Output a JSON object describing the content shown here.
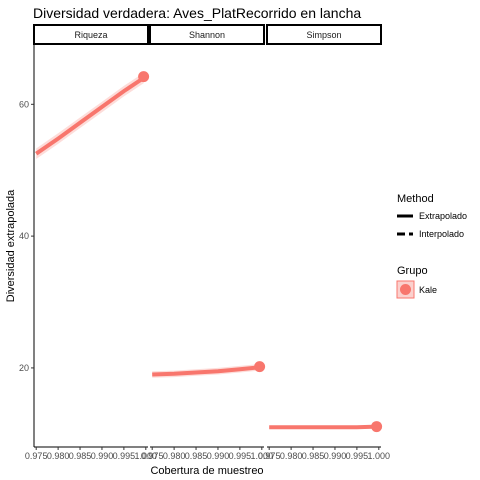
{
  "chart_data": {
    "type": "line",
    "title": "Diversidad verdadera: Aves_PlatRecorrido en lancha",
    "xlabel": "Cobertura de muestreo",
    "ylabel": "Diversidad extrapolada",
    "x_ticks": [
      "0.975",
      "0.980",
      "0.985",
      "0.990",
      "0.995",
      "1.000"
    ],
    "x_range": [
      0.9745,
      1.0005
    ],
    "y_ticks": [
      20,
      40,
      60
    ],
    "y_range": [
      8,
      69
    ],
    "panels": [
      {
        "label": "Riqueza",
        "series": [
          {
            "name": "Kale",
            "method": "Interpolado",
            "x": [
              0.975,
              0.98,
              0.985,
              0.99,
              0.995,
              0.9995
            ],
            "y": [
              52.5,
              54.8,
              57.2,
              59.6,
              62.0,
              64.0
            ],
            "lower": [
              51.7,
              54.0,
              56.4,
              58.8,
              61.2,
              63.2
            ],
            "upper": [
              53.3,
              55.6,
              58.0,
              60.4,
              62.8,
              64.8
            ]
          },
          {
            "name": "Kale",
            "method": "Extrapolado",
            "x": [
              0.9995,
              1.0
            ],
            "y": [
              64.0,
              64.2
            ]
          }
        ],
        "observed": {
          "x": 0.9995,
          "y": 64.2
        }
      },
      {
        "label": "Shannon",
        "series": [
          {
            "name": "Kale",
            "method": "Interpolado",
            "x": [
              0.975,
              0.98,
              0.985,
              0.99,
              0.995,
              0.9995
            ],
            "y": [
              19.0,
              19.1,
              19.3,
              19.5,
              19.8,
              20.1
            ],
            "lower": [
              18.5,
              18.6,
              18.8,
              19.0,
              19.3,
              19.6
            ],
            "upper": [
              19.5,
              19.6,
              19.8,
              20.0,
              20.3,
              20.6
            ]
          },
          {
            "name": "Kale",
            "method": "Extrapolado",
            "x": [
              0.9995,
              1.0
            ],
            "y": [
              20.1,
              20.2
            ]
          }
        ],
        "observed": {
          "x": 0.9995,
          "y": 20.2
        }
      },
      {
        "label": "Simpson",
        "series": [
          {
            "name": "Kale",
            "method": "Interpolado",
            "x": [
              0.975,
              0.98,
              0.985,
              0.99,
              0.995,
              0.9995
            ],
            "y": [
              11.0,
              11.0,
              11.0,
              11.0,
              11.0,
              11.1
            ],
            "lower": [
              10.9,
              10.9,
              10.9,
              10.9,
              10.9,
              11.0
            ],
            "upper": [
              11.1,
              11.1,
              11.1,
              11.1,
              11.1,
              11.2
            ]
          },
          {
            "name": "Kale",
            "method": "Extrapolado",
            "x": [
              0.9995,
              1.0
            ],
            "y": [
              11.1,
              11.1
            ]
          }
        ],
        "observed": {
          "x": 0.9995,
          "y": 11.1
        }
      }
    ],
    "legend": {
      "placement": "right",
      "method_title": "Method",
      "method_items": [
        "Extrapolado",
        "Interpolado"
      ],
      "group_title": "Grupo",
      "group_items": [
        "Kale"
      ]
    },
    "colors": {
      "series": "#f8766d",
      "band": "#f8766d"
    },
    "grid": false
  }
}
